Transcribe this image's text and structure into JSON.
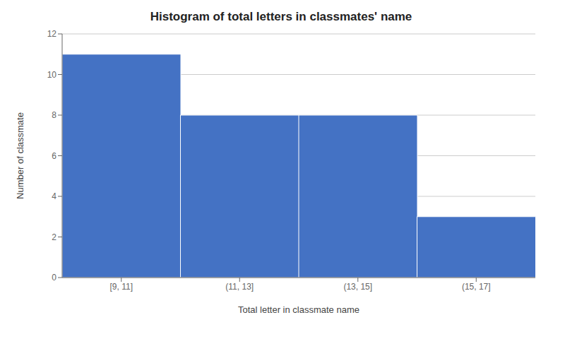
{
  "chart_data": {
    "type": "bar",
    "title": "Histogram of total letters in classmates' name",
    "xlabel": "Total letter in classmate name",
    "ylabel": "Number of classmate",
    "categories": [
      "[9, 11]",
      "(11, 13]",
      "(13, 15]",
      "(15, 17]"
    ],
    "values": [
      11,
      8,
      8,
      3
    ],
    "color": "#4472C4",
    "ylim": [
      0,
      12
    ],
    "yticks": [
      0,
      2,
      4,
      6,
      8,
      10,
      12
    ],
    "grid": true
  }
}
